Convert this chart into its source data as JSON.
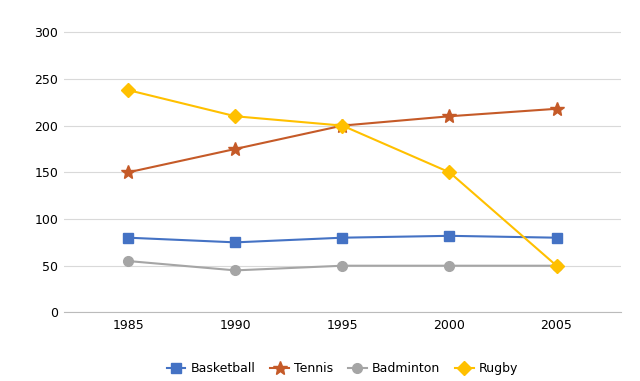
{
  "years": [
    1985,
    1990,
    1995,
    2000,
    2005
  ],
  "series": {
    "Basketball": {
      "values": [
        80,
        75,
        80,
        82,
        80
      ],
      "color": "#4472C4",
      "marker": "s",
      "markersize": 7
    },
    "Tennis": {
      "values": [
        150,
        175,
        200,
        210,
        218
      ],
      "color": "#C55A28",
      "marker": "*",
      "markersize": 10
    },
    "Badminton": {
      "values": [
        55,
        45,
        50,
        50,
        50
      ],
      "color": "#A5A5A5",
      "marker": "o",
      "markersize": 7
    },
    "Rugby": {
      "values": [
        238,
        210,
        200,
        150,
        50
      ],
      "color": "#FFC000",
      "marker": "D",
      "markersize": 7
    }
  },
  "yticks": [
    0,
    50,
    100,
    150,
    200,
    250,
    300
  ],
  "xticks": [
    1985,
    1990,
    1995,
    2000,
    2005
  ],
  "ylim": [
    0,
    310
  ],
  "xlim": [
    1982,
    2008
  ],
  "background_color": "#FFFFFF",
  "grid_color": "#D9D9D9",
  "legend_order": [
    "Basketball",
    "Tennis",
    "Badminton",
    "Rugby"
  ]
}
